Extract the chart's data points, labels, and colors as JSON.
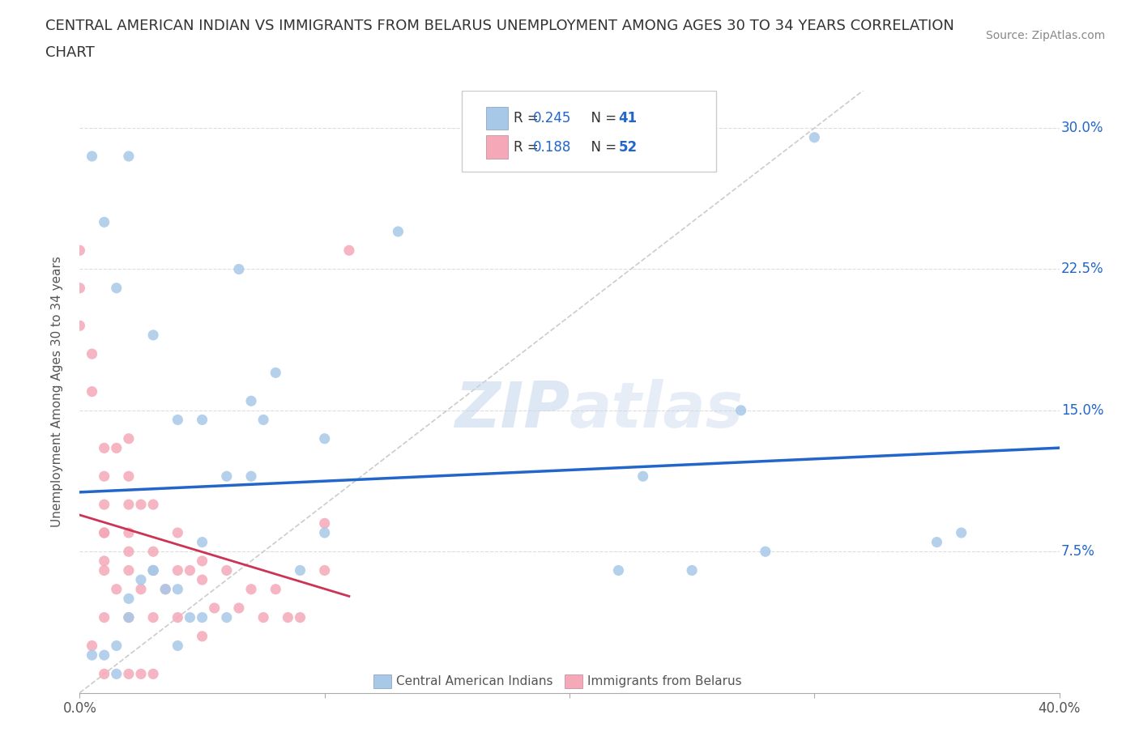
{
  "title_line1": "CENTRAL AMERICAN INDIAN VS IMMIGRANTS FROM BELARUS UNEMPLOYMENT AMONG AGES 30 TO 34 YEARS CORRELATION",
  "title_line2": "CHART",
  "source_text": "Source: ZipAtlas.com",
  "ylabel": "Unemployment Among Ages 30 to 34 years",
  "xlim": [
    0.0,
    0.4
  ],
  "ylim": [
    0.0,
    0.32
  ],
  "xticks": [
    0.0,
    0.1,
    0.2,
    0.3,
    0.4
  ],
  "xticklabels": [
    "0.0%",
    "",
    "",
    "",
    "40.0%"
  ],
  "yticks": [
    0.0,
    0.075,
    0.15,
    0.225,
    0.3
  ],
  "yticklabels": [
    "",
    "7.5%",
    "15.0%",
    "22.5%",
    "30.0%"
  ],
  "grid_color": "#dddddd",
  "background_color": "#ffffff",
  "blue_color": "#a8c8e8",
  "pink_color": "#f4a8b8",
  "blue_line_color": "#2266cc",
  "pink_line_color": "#cc3355",
  "diagonal_color": "#cccccc",
  "blue_scatter_x": [
    0.005,
    0.01,
    0.015,
    0.02,
    0.02,
    0.025,
    0.03,
    0.03,
    0.035,
    0.04,
    0.04,
    0.045,
    0.05,
    0.05,
    0.06,
    0.065,
    0.07,
    0.07,
    0.075,
    0.08,
    0.09,
    0.1,
    0.1,
    0.13,
    0.22,
    0.25,
    0.27,
    0.3,
    0.35,
    0.36,
    0.005,
    0.01,
    0.015,
    0.02,
    0.03,
    0.04,
    0.05,
    0.06,
    0.23,
    0.28,
    0.015
  ],
  "blue_scatter_y": [
    0.285,
    0.25,
    0.215,
    0.285,
    0.05,
    0.06,
    0.19,
    0.065,
    0.055,
    0.145,
    0.055,
    0.04,
    0.145,
    0.08,
    0.115,
    0.225,
    0.115,
    0.155,
    0.145,
    0.17,
    0.065,
    0.135,
    0.085,
    0.245,
    0.065,
    0.065,
    0.15,
    0.295,
    0.08,
    0.085,
    0.02,
    0.02,
    0.025,
    0.04,
    0.065,
    0.025,
    0.04,
    0.04,
    0.115,
    0.075,
    0.01
  ],
  "pink_scatter_x": [
    0.0,
    0.0,
    0.0,
    0.005,
    0.005,
    0.01,
    0.01,
    0.01,
    0.01,
    0.01,
    0.01,
    0.01,
    0.01,
    0.015,
    0.015,
    0.02,
    0.02,
    0.02,
    0.02,
    0.02,
    0.02,
    0.02,
    0.025,
    0.025,
    0.03,
    0.03,
    0.03,
    0.03,
    0.035,
    0.04,
    0.04,
    0.04,
    0.045,
    0.05,
    0.05,
    0.05,
    0.055,
    0.06,
    0.065,
    0.07,
    0.075,
    0.08,
    0.085,
    0.09,
    0.1,
    0.1,
    0.11,
    0.005,
    0.01,
    0.02,
    0.025,
    0.03
  ],
  "pink_scatter_y": [
    0.235,
    0.215,
    0.195,
    0.18,
    0.16,
    0.13,
    0.115,
    0.1,
    0.085,
    0.085,
    0.07,
    0.065,
    0.04,
    0.13,
    0.055,
    0.135,
    0.115,
    0.1,
    0.085,
    0.075,
    0.065,
    0.04,
    0.1,
    0.055,
    0.1,
    0.075,
    0.065,
    0.04,
    0.055,
    0.085,
    0.065,
    0.04,
    0.065,
    0.07,
    0.06,
    0.03,
    0.045,
    0.065,
    0.045,
    0.055,
    0.04,
    0.055,
    0.04,
    0.04,
    0.09,
    0.065,
    0.235,
    0.025,
    0.01,
    0.01,
    0.01,
    0.01
  ],
  "bottom_label_blue": "Central American Indians",
  "bottom_label_pink": "Immigrants from Belarus"
}
